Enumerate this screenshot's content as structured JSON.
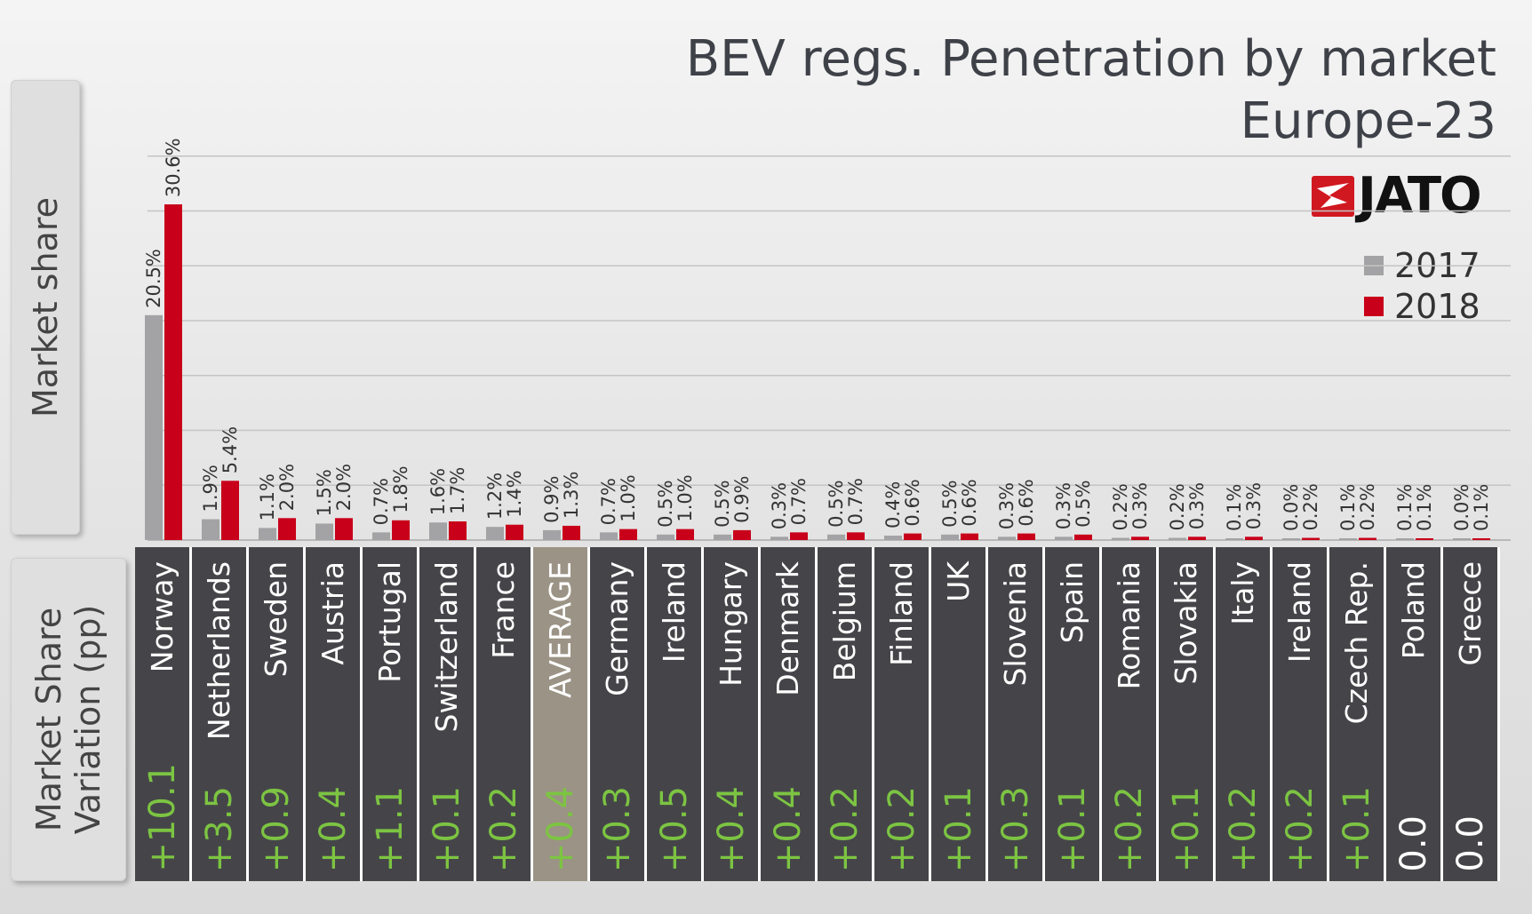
{
  "title": "BEV regs. Penetration by market",
  "subtitle": "Europe-23",
  "brand": "JATO",
  "colors": {
    "series_2017": "#a3a3a5",
    "series_2018": "#c8001a",
    "variation_positive": "#7cc442",
    "variation_zero": "#ffffff",
    "table_bg": "#454549",
    "average_bg": "#9b9385"
  },
  "labels": {
    "market_share": "Market share",
    "variation_line1": "Market Share",
    "variation_line2": "Variation (pp)"
  },
  "chart_data": {
    "type": "bar",
    "title": "BEV regs. Penetration by market",
    "subtitle": "Europe-23",
    "ylabel": "Market share",
    "ylim": [
      0,
      35
    ],
    "grid": true,
    "legend_position": "top-right",
    "categories": [
      "Norway",
      "Netherlands",
      "Sweden",
      "Austria",
      "Portugal",
      "Switzerland",
      "France",
      "AVERAGE",
      "Germany",
      "Ireland",
      "Hungary",
      "Denmark",
      "Belgium",
      "Finland",
      "UK",
      "Slovenia",
      "Spain",
      "Romania",
      "Slovakia",
      "Italy",
      "Ireland",
      "Czech Rep.",
      "Poland",
      "Greece"
    ],
    "series": [
      {
        "name": "2017",
        "values": [
          20.5,
          1.9,
          1.1,
          1.5,
          0.7,
          1.6,
          1.2,
          0.9,
          0.7,
          0.5,
          0.5,
          0.3,
          0.5,
          0.4,
          0.5,
          0.3,
          0.3,
          0.2,
          0.2,
          0.1,
          0.0,
          0.1,
          0.1,
          0.0
        ],
        "labels": [
          "20.5%",
          "1.9%",
          "1.1%",
          "1.5%",
          "0.7%",
          "1.6%",
          "1.2%",
          "0.9%",
          "0.7%",
          "0.5%",
          "0.5%",
          "0.3%",
          "0.5%",
          "0.4%",
          "0.5%",
          "0.3%",
          "0.3%",
          "0.2%",
          "0.2%",
          "0.1%",
          "0.0%",
          "0.1%",
          "0.1%",
          "0.0%"
        ]
      },
      {
        "name": "2018",
        "values": [
          30.6,
          5.4,
          2.0,
          2.0,
          1.8,
          1.7,
          1.4,
          1.3,
          1.0,
          1.0,
          0.9,
          0.7,
          0.7,
          0.6,
          0.6,
          0.6,
          0.5,
          0.3,
          0.3,
          0.3,
          0.2,
          0.2,
          0.1,
          0.1
        ],
        "labels": [
          "30.6%",
          "5.4%",
          "2.0%",
          "2.0%",
          "1.8%",
          "1.7%",
          "1.4%",
          "1.3%",
          "1.0%",
          "1.0%",
          "0.9%",
          "0.7%",
          "0.7%",
          "0.6%",
          "0.6%",
          "0.6%",
          "0.5%",
          "0.3%",
          "0.3%",
          "0.3%",
          "0.2%",
          "0.2%",
          "0.1%",
          "0.1%"
        ]
      }
    ],
    "variation_pp": [
      "+10.1",
      "+3.5",
      "+0.9",
      "+0.4",
      "+1.1",
      "+0.1",
      "+0.2",
      "+0.4",
      "+0.3",
      "+0.5",
      "+0.4",
      "+0.4",
      "+0.2",
      "+0.2",
      "+0.1",
      "+0.3",
      "+0.1",
      "+0.2",
      "+0.1",
      "+0.2",
      "+0.2",
      "+0.1",
      "0.0",
      "0.0"
    ]
  }
}
